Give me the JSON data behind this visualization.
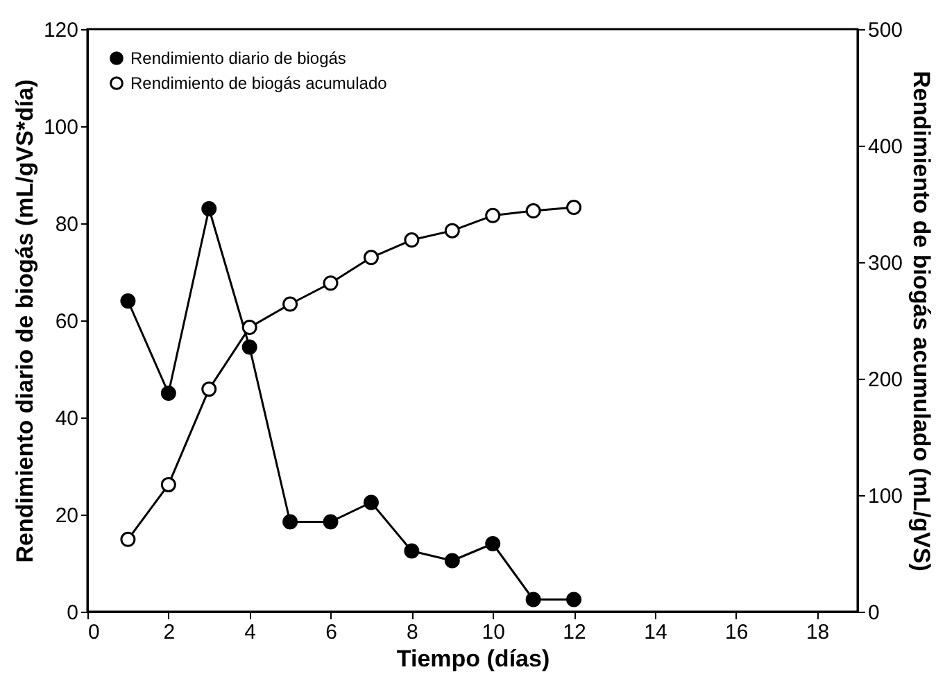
{
  "chart_data": {
    "type": "line",
    "xlabel": "Tiempo (días)",
    "ylabel": "Rendimiento diario de biogás (mL/gVS*día)",
    "y2label": "Rendimiento de biogás acumulado (mL/gVS)",
    "x": [
      1,
      2,
      3,
      4,
      5,
      6,
      7,
      8,
      9,
      10,
      11,
      12
    ],
    "series": [
      {
        "name": "Rendimiento diario de biogás",
        "color": "#000000",
        "marker": "circle",
        "values": [
          64,
          45,
          83,
          54.5,
          18.5,
          18.5,
          22.5,
          12.5,
          10.5,
          14,
          2.5,
          2.5
        ]
      },
      {
        "name": "Rendimiento de biogás acumulado",
        "color": "#000000",
        "marker": "circle",
        "axis": "y2",
        "values": [
          62,
          109,
          191,
          244,
          264,
          282,
          304,
          319,
          327,
          340,
          344,
          347
        ]
      }
    ],
    "xlim": [
      0,
      19
    ],
    "xticks": [
      0,
      2,
      4,
      6,
      8,
      10,
      12,
      14,
      16,
      18
    ],
    "ylim": [
      0,
      120
    ],
    "yticks": [
      0,
      20,
      40,
      60,
      80,
      100,
      120
    ],
    "y2lim": [
      0,
      500
    ],
    "y2ticks": [
      0,
      100,
      200,
      300,
      400,
      500
    ],
    "grid": false,
    "legend": "top left",
    "line_style": "solid"
  }
}
